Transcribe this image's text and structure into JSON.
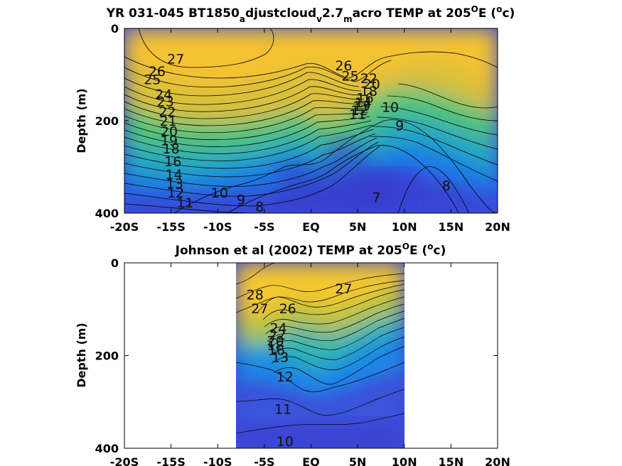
{
  "chart_data": [
    {
      "type": "heatmap",
      "title": "YR 031-045 BT1850_adjustcloud_v2.7_macro TEMP at 205°E (°c)",
      "title_parts": [
        "YR 031-045 BT1850",
        "a",
        "djustcloud",
        "v",
        "2.7",
        "m",
        "acro TEMP at 205",
        "O",
        "E (",
        "o",
        "c)"
      ],
      "ylabel": "Depth (m)",
      "xlim": [
        -20,
        20
      ],
      "ylim": [
        400,
        0
      ],
      "xticks": [
        -20,
        -15,
        -10,
        -5,
        0,
        5,
        10,
        15,
        20
      ],
      "xtick_labels": [
        "-20S",
        "-15S",
        "-10S",
        "-5S",
        "EQ",
        "5N",
        "10N",
        "15N",
        "20N"
      ],
      "yticks": [
        0,
        200,
        400
      ],
      "ytick_labels": [
        "0",
        "200",
        "400"
      ],
      "data_lon_range": [
        -20,
        20
      ],
      "contour_labels": [
        {
          "text": "27",
          "lon": -14.5,
          "depth": 65
        },
        {
          "text": "26",
          "lon": -16.5,
          "depth": 92
        },
        {
          "text": "25",
          "lon": -17.0,
          "depth": 110
        },
        {
          "text": "24",
          "lon": -15.8,
          "depth": 142
        },
        {
          "text": "23",
          "lon": -15.6,
          "depth": 158
        },
        {
          "text": "22",
          "lon": -15.4,
          "depth": 180
        },
        {
          "text": "21",
          "lon": -15.3,
          "depth": 200
        },
        {
          "text": "20",
          "lon": -15.2,
          "depth": 222
        },
        {
          "text": "19",
          "lon": -15.2,
          "depth": 242
        },
        {
          "text": "18",
          "lon": -15.0,
          "depth": 260
        },
        {
          "text": "16",
          "lon": -14.8,
          "depth": 288
        },
        {
          "text": "14",
          "lon": -14.7,
          "depth": 315
        },
        {
          "text": "13",
          "lon": -14.6,
          "depth": 335
        },
        {
          "text": "12",
          "lon": -14.5,
          "depth": 355
        },
        {
          "text": "11",
          "lon": -13.5,
          "depth": 377
        },
        {
          "text": "10",
          "lon": -9.8,
          "depth": 355
        },
        {
          "text": "9",
          "lon": -7.5,
          "depth": 370
        },
        {
          "text": "8",
          "lon": -5.5,
          "depth": 385
        },
        {
          "text": "26",
          "lon": 3.5,
          "depth": 80
        },
        {
          "text": "25",
          "lon": 4.2,
          "depth": 102
        },
        {
          "text": "22",
          "lon": 6.2,
          "depth": 108
        },
        {
          "text": "20",
          "lon": 6.5,
          "depth": 120
        },
        {
          "text": "18",
          "lon": 6.2,
          "depth": 135
        },
        {
          "text": "16",
          "lon": 5.8,
          "depth": 150
        },
        {
          "text": "14",
          "lon": 5.6,
          "depth": 160
        },
        {
          "text": "13",
          "lon": 5.4,
          "depth": 168
        },
        {
          "text": "12",
          "lon": 5.2,
          "depth": 177
        },
        {
          "text": "11",
          "lon": 5.0,
          "depth": 185
        },
        {
          "text": "10",
          "lon": 8.5,
          "depth": 170
        },
        {
          "text": "9",
          "lon": 9.5,
          "depth": 210
        },
        {
          "text": "8",
          "lon": 14.5,
          "depth": 340
        },
        {
          "text": "7",
          "lon": 7.0,
          "depth": 365
        }
      ]
    },
    {
      "type": "heatmap",
      "title": "Johnson et al (2002) TEMP at 205°E (°c)",
      "title_parts": [
        "Johnson et al (2002) TEMP at 205",
        "O",
        "E (",
        "o",
        "c)"
      ],
      "ylabel": "Depth (m)",
      "xlim": [
        -20,
        20
      ],
      "ylim": [
        400,
        0
      ],
      "xticks": [
        -20,
        -15,
        -10,
        -5,
        0,
        5,
        10,
        15,
        20
      ],
      "xtick_labels": [
        "-20S",
        "-15S",
        "-10S",
        "-5S",
        "EQ",
        "5N",
        "10N",
        "15N",
        "20N"
      ],
      "yticks": [
        0,
        200,
        400
      ],
      "ytick_labels": [
        "0",
        "200",
        "400"
      ],
      "data_lon_range": [
        -8,
        10
      ],
      "contour_labels": [
        {
          "text": "28",
          "lon": -6.0,
          "depth": 68
        },
        {
          "text": "27",
          "lon": -5.5,
          "depth": 98
        },
        {
          "text": "26",
          "lon": -2.5,
          "depth": 98
        },
        {
          "text": "27",
          "lon": 3.5,
          "depth": 55
        },
        {
          "text": "24",
          "lon": -3.5,
          "depth": 140
        },
        {
          "text": "22",
          "lon": -3.6,
          "depth": 155
        },
        {
          "text": "20",
          "lon": -3.8,
          "depth": 168
        },
        {
          "text": "18",
          "lon": -3.8,
          "depth": 178
        },
        {
          "text": "16",
          "lon": -3.7,
          "depth": 188
        },
        {
          "text": "13",
          "lon": -3.3,
          "depth": 203
        },
        {
          "text": "12",
          "lon": -2.8,
          "depth": 245
        },
        {
          "text": "11",
          "lon": -3.0,
          "depth": 315
        },
        {
          "text": "10",
          "lon": -2.8,
          "depth": 385
        }
      ]
    }
  ]
}
